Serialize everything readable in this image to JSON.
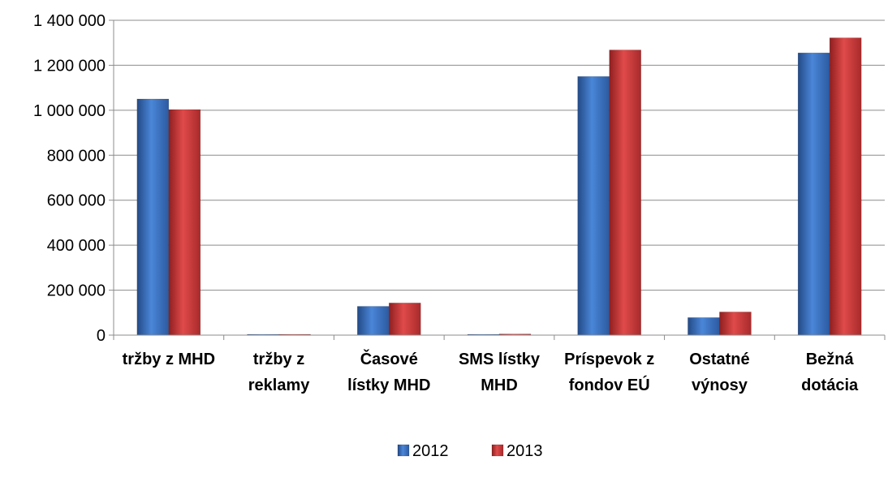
{
  "chart_data": {
    "type": "bar",
    "categories": [
      [
        "tržby z MHD"
      ],
      [
        "tržby z",
        "reklamy"
      ],
      [
        "Časové",
        "lístky MHD"
      ],
      [
        "SMS lístky",
        "MHD"
      ],
      [
        "Príspevok z",
        "fondov EÚ"
      ],
      [
        "Ostatné",
        "výnosy"
      ],
      [
        "Bežná",
        "dotácia"
      ]
    ],
    "series": [
      {
        "name": "2012",
        "color": "#3e74c4",
        "values": [
          1050000,
          3000,
          128000,
          2000,
          1150000,
          78000,
          1255000
        ]
      },
      {
        "name": "2013",
        "color": "#d0393a",
        "values": [
          1003000,
          3000,
          143000,
          5000,
          1268000,
          103000,
          1322000
        ]
      }
    ],
    "ylim": [
      0,
      1400000
    ],
    "yticks": [
      0,
      200000,
      400000,
      600000,
      800000,
      1000000,
      1200000,
      1400000
    ],
    "ytick_labels": [
      "0",
      "200 000",
      "400 000",
      "600 000",
      "800 000",
      "1 000 000",
      "1 200 000",
      "1 400 000"
    ],
    "grid": true,
    "legend_position": "bottom"
  }
}
